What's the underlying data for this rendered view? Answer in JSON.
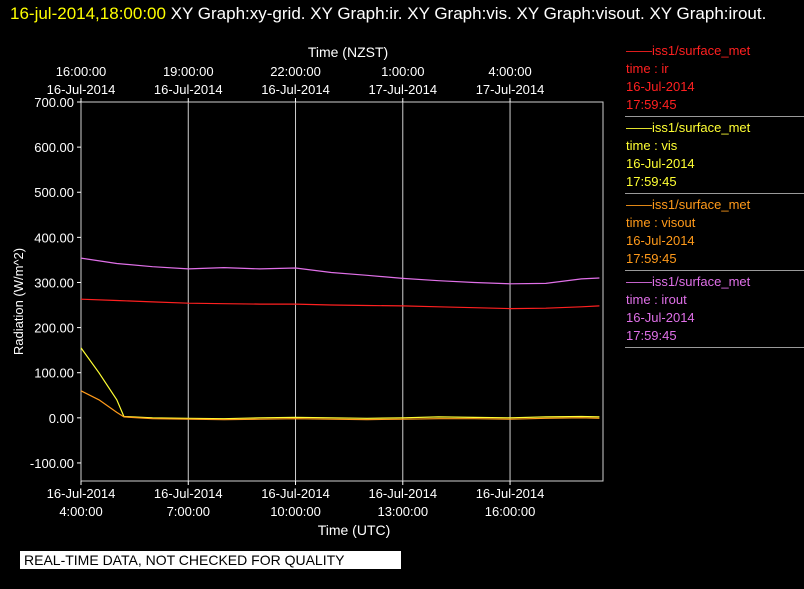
{
  "title": {
    "time": "16-jul-2014,18:00:00",
    "description": "XY Graph:xy-grid.  XY Graph:ir.  XY Graph:vis.  XY Graph:visout.  XY Graph:irout."
  },
  "banner": "REAL-TIME DATA, NOT CHECKED FOR QUALITY",
  "legend": [
    {
      "dash": "——",
      "source": "iss1/surface_met",
      "field": "time : ir",
      "date": "16-Jul-2014",
      "time": "17:59:45",
      "color": "#ff2020"
    },
    {
      "dash": "——",
      "source": "iss1/surface_met",
      "field": "time : vis",
      "date": "16-Jul-2014",
      "time": "17:59:45",
      "color": "#ffff33"
    },
    {
      "dash": "——",
      "source": "iss1/surface_met",
      "field": "time : visout",
      "date": "16-Jul-2014",
      "time": "17:59:45",
      "color": "#ff9a1a"
    },
    {
      "dash": "——",
      "source": "iss1/surface_met",
      "field": "time : irout",
      "date": "16-Jul-2014",
      "time": "17:59:45",
      "color": "#e070e8"
    }
  ],
  "chart_data": {
    "type": "line",
    "title": "",
    "ylabel": "Radiation  (W/m^2)",
    "xlabel": "Time (UTC)",
    "top_axis_label": "Time (NZST)",
    "xlim_hours": [
      4.0,
      18.6
    ],
    "ylim": [
      -140,
      700
    ],
    "y_ticks": [
      -100,
      0,
      100,
      200,
      300,
      400,
      500,
      600,
      700
    ],
    "y_tick_labels": [
      "-100.00",
      "0.00",
      "100.00",
      "200.00",
      "300.00",
      "400.00",
      "500.00",
      "600.00",
      "700.00"
    ],
    "x_ticks": [
      {
        "hour": 4,
        "date": "16-Jul-2014",
        "time": "4:00:00"
      },
      {
        "hour": 7,
        "date": "16-Jul-2014",
        "time": "7:00:00"
      },
      {
        "hour": 10,
        "date": "16-Jul-2014",
        "time": "10:00:00"
      },
      {
        "hour": 13,
        "date": "16-Jul-2014",
        "time": "13:00:00"
      },
      {
        "hour": 16,
        "date": "16-Jul-2014",
        "time": "16:00:00"
      }
    ],
    "top_ticks": [
      {
        "hour": 4,
        "time": "16:00:00",
        "date": "16-Jul-2014"
      },
      {
        "hour": 7,
        "time": "19:00:00",
        "date": "16-Jul-2014"
      },
      {
        "hour": 10,
        "time": "22:00:00",
        "date": "16-Jul-2014"
      },
      {
        "hour": 13,
        "time": "1:00:00",
        "date": "17-Jul-2014"
      },
      {
        "hour": 16,
        "time": "4:00:00",
        "date": "17-Jul-2014"
      }
    ],
    "grid": true,
    "series": [
      {
        "name": "time : ir",
        "color": "#ff2020",
        "x": [
          4.0,
          5.0,
          6.0,
          7.0,
          8.0,
          9.0,
          10.0,
          11.0,
          12.0,
          13.0,
          14.0,
          15.0,
          16.0,
          17.0,
          18.0,
          18.5
        ],
        "y": [
          263,
          260,
          257,
          254,
          253,
          252,
          252,
          250,
          249,
          248,
          246,
          244,
          242,
          243,
          246,
          248
        ]
      },
      {
        "name": "time : vis",
        "color": "#ffff33",
        "x": [
          4.0,
          4.5,
          5.0,
          5.2,
          6.0,
          7.0,
          8.0,
          9.0,
          10.0,
          11.0,
          12.0,
          13.0,
          14.0,
          15.0,
          16.0,
          17.0,
          18.0,
          18.5
        ],
        "y": [
          155,
          100,
          40,
          3,
          0,
          -1,
          -2,
          0,
          1,
          0,
          -1,
          0,
          2,
          1,
          0,
          2,
          3,
          2
        ]
      },
      {
        "name": "time : visout",
        "color": "#ff9a1a",
        "x": [
          4.0,
          4.5,
          5.0,
          5.2,
          6.0,
          7.0,
          8.0,
          9.0,
          10.0,
          11.0,
          12.0,
          13.0,
          14.0,
          15.0,
          16.0,
          17.0,
          18.0,
          18.5
        ],
        "y": [
          60,
          40,
          12,
          2,
          -2,
          -3,
          -4,
          -3,
          -2,
          -3,
          -4,
          -3,
          -2,
          -2,
          -3,
          -1,
          0,
          -1
        ]
      },
      {
        "name": "time : irout",
        "color": "#e070e8",
        "x": [
          4.0,
          5.0,
          6.0,
          7.0,
          8.0,
          9.0,
          10.0,
          11.0,
          12.0,
          13.0,
          14.0,
          15.0,
          16.0,
          17.0,
          18.0,
          18.5
        ],
        "y": [
          354,
          342,
          335,
          330,
          333,
          330,
          332,
          322,
          316,
          309,
          304,
          300,
          297,
          298,
          308,
          310
        ]
      }
    ]
  }
}
